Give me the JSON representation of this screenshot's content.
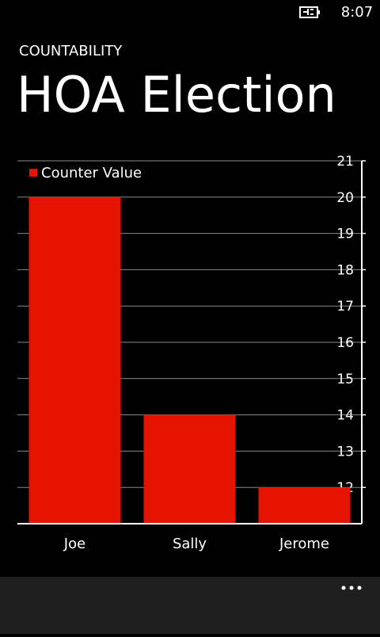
{
  "status_bar": {
    "time": "8:07"
  },
  "header": {
    "app_name": "COUNTABILITY",
    "page_title": "HOA Election"
  },
  "chart_data": {
    "type": "bar",
    "categories": [
      "Joe",
      "Sally",
      "Jerome"
    ],
    "series": [
      {
        "name": "Counter Value",
        "color": "#e51400",
        "values": [
          20,
          14,
          12
        ]
      }
    ],
    "ylim": [
      11,
      21
    ],
    "yticks": [
      12,
      13,
      14,
      15,
      16,
      17,
      18,
      19,
      20,
      21
    ],
    "grid": true,
    "legend": "top-left",
    "y_axis_side": "right"
  }
}
